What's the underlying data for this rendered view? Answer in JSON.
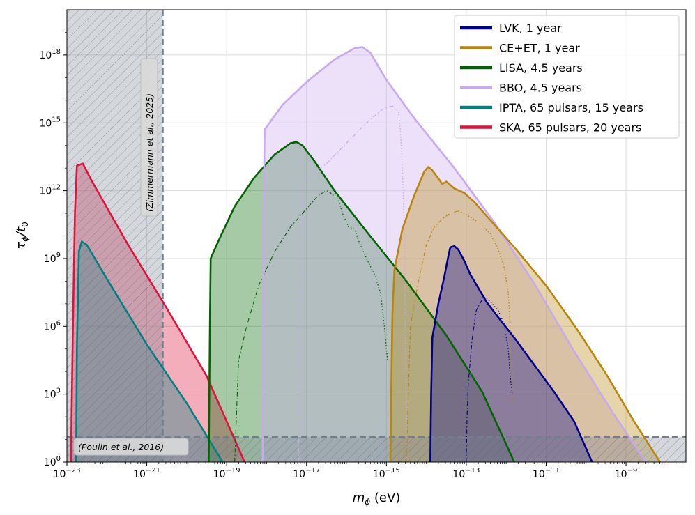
{
  "chart_data": {
    "type": "area",
    "title": "",
    "xlabel": "m",
    "xlabel_sub": "ϕ",
    "xlabel_unit": " (eV)",
    "ylabel": "τ",
    "ylabel_sub": "ϕ",
    "ylabel_tail": "/t",
    "ylabel_sub2": "0",
    "xscale": "log",
    "yscale": "log",
    "xlim_log10": [
      -23,
      -7.5
    ],
    "ylim_log10": [
      0,
      20
    ],
    "grid": true,
    "legend_position": "top-right",
    "x_ticks": [
      {
        "log": -23,
        "base": "10",
        "exp": "−23"
      },
      {
        "log": -21,
        "base": "10",
        "exp": "−21"
      },
      {
        "log": -19,
        "base": "10",
        "exp": "−19"
      },
      {
        "log": -17,
        "base": "10",
        "exp": "−17"
      },
      {
        "log": -15,
        "base": "10",
        "exp": "−15"
      },
      {
        "log": -13,
        "base": "10",
        "exp": "−13"
      },
      {
        "log": -11,
        "base": "10",
        "exp": "−11"
      },
      {
        "log": -9,
        "base": "10",
        "exp": "−9"
      }
    ],
    "y_ticks": [
      {
        "log": 0,
        "base": "10",
        "exp": "0"
      },
      {
        "log": 3,
        "base": "10",
        "exp": "3"
      },
      {
        "log": 6,
        "base": "10",
        "exp": "6"
      },
      {
        "log": 9,
        "base": "10",
        "exp": "9"
      },
      {
        "log": 12,
        "base": "10",
        "exp": "12"
      },
      {
        "log": 15,
        "base": "10",
        "exp": "15"
      },
      {
        "log": 18,
        "base": "10",
        "exp": "18"
      }
    ],
    "excluded_regions": [
      {
        "name": "zimmermann",
        "label": "(Zimmermann et al., 2025)",
        "x_max_log10": -20.6,
        "orientation": "vertical"
      },
      {
        "name": "poulin",
        "label": "(Poulin et al., 2016)",
        "y_max_log10": 1.1,
        "orientation": "horizontal"
      }
    ],
    "series": [
      {
        "id": "ska",
        "name": "SKA, 65 pulsars, 20 years",
        "color": "#dc143c",
        "fill_opacity": 0.35,
        "outline": [
          [
            -22.9,
            0
          ],
          [
            -22.85,
            6
          ],
          [
            -22.8,
            11
          ],
          [
            -22.75,
            13.1
          ],
          [
            -22.6,
            13.2
          ],
          [
            -22.4,
            12.5
          ],
          [
            -21.5,
            9.7
          ],
          [
            -20.5,
            6.8
          ],
          [
            -19.5,
            3.8
          ],
          [
            -18.55,
            0
          ]
        ]
      },
      {
        "id": "ipta",
        "name": "IPTA, 65 pulsars, 15 years",
        "color": "#008080",
        "fill_opacity": 0.35,
        "outline": [
          [
            -22.77,
            0
          ],
          [
            -22.75,
            5
          ],
          [
            -22.7,
            9.3
          ],
          [
            -22.63,
            9.75
          ],
          [
            -22.5,
            9.6
          ],
          [
            -22,
            8.1
          ],
          [
            -21,
            5.2
          ],
          [
            -20,
            2.6
          ],
          [
            -19.1,
            0
          ]
        ]
      },
      {
        "id": "lisa",
        "name": "LISA, 4.5 years",
        "color": "#006400",
        "fill_opacity": 0.35,
        "outline": [
          [
            -19.45,
            0
          ],
          [
            -19.42,
            6
          ],
          [
            -19.4,
            9
          ],
          [
            -19.2,
            9.8
          ],
          [
            -18.8,
            11.3
          ],
          [
            -18.3,
            12.6
          ],
          [
            -17.8,
            13.6
          ],
          [
            -17.4,
            14.1
          ],
          [
            -17.25,
            14.15
          ],
          [
            -17.1,
            14
          ],
          [
            -16.8,
            13.3
          ],
          [
            -16.3,
            12
          ],
          [
            -15.5,
            10.2
          ],
          [
            -14.5,
            8
          ],
          [
            -13.5,
            5.6
          ],
          [
            -12.6,
            3.1
          ],
          [
            -11.8,
            0
          ]
        ],
        "inner_dashdot": [
          [
            -18.8,
            0
          ],
          [
            -18.7,
            4.5
          ],
          [
            -18.5,
            6
          ],
          [
            -18.2,
            7.8
          ],
          [
            -17.8,
            9.3
          ],
          [
            -17.4,
            10.4
          ],
          [
            -17,
            11.2
          ],
          [
            -16.7,
            11.8
          ],
          [
            -16.5,
            12
          ],
          [
            -16.4,
            11.9
          ]
        ],
        "inner_dotted": [
          [
            -16.4,
            11.9
          ],
          [
            -16.2,
            11.6
          ],
          [
            -16.1,
            11
          ],
          [
            -15.95,
            10.4
          ],
          [
            -15.8,
            10.3
          ],
          [
            -15.7,
            9.8
          ],
          [
            -15.5,
            9
          ],
          [
            -15.3,
            8.3
          ],
          [
            -15.15,
            7.5
          ],
          [
            -15.05,
            6
          ],
          [
            -15.0,
            5
          ],
          [
            -14.97,
            4.5
          ]
        ]
      },
      {
        "id": "bbo",
        "name": "BBO, 4.5 years",
        "color": "#c8a8ee",
        "fill_opacity": 0.35,
        "outline": [
          [
            -18.1,
            0
          ],
          [
            -18.08,
            10
          ],
          [
            -18.05,
            14.7
          ],
          [
            -17.6,
            15.8
          ],
          [
            -17,
            16.8
          ],
          [
            -16.3,
            17.8
          ],
          [
            -15.8,
            18.3
          ],
          [
            -15.6,
            18.35
          ],
          [
            -15.4,
            18.1
          ],
          [
            -15,
            16.9
          ],
          [
            -14.3,
            15.2
          ],
          [
            -13.3,
            13
          ],
          [
            -12.3,
            10.6
          ],
          [
            -11.3,
            7.9
          ],
          [
            -10.3,
            4.9
          ],
          [
            -9.3,
            2.1
          ],
          [
            -8.5,
            0
          ]
        ],
        "inner_dashdot": [
          [
            -17.2,
            0
          ],
          [
            -17.15,
            10
          ],
          [
            -17.1,
            12.4
          ],
          [
            -16.5,
            13.2
          ],
          [
            -16,
            14.1
          ],
          [
            -15.5,
            15
          ],
          [
            -15.1,
            15.6
          ],
          [
            -14.85,
            15.75
          ]
        ],
        "inner_dotted": [
          [
            -14.85,
            15.75
          ],
          [
            -14.7,
            15.5
          ],
          [
            -14.65,
            14.7
          ],
          [
            -14.6,
            13
          ],
          [
            -14.55,
            10
          ],
          [
            -14.52,
            5
          ],
          [
            -14.5,
            2
          ],
          [
            -14.5,
            0
          ]
        ]
      },
      {
        "id": "ce_et",
        "name": "CE+ET, 1 year",
        "color": "#b8860b",
        "fill_opacity": 0.35,
        "outline": [
          [
            -14.9,
            0
          ],
          [
            -14.88,
            3
          ],
          [
            -14.85,
            6.5
          ],
          [
            -14.8,
            8.5
          ],
          [
            -14.6,
            10.3
          ],
          [
            -14.3,
            11.8
          ],
          [
            -14.05,
            12.85
          ],
          [
            -13.95,
            13.05
          ],
          [
            -13.85,
            12.9
          ],
          [
            -13.6,
            12.3
          ],
          [
            -13.5,
            12.4
          ],
          [
            -13.3,
            12.1
          ],
          [
            -13.05,
            11.9
          ],
          [
            -12.8,
            11.5
          ],
          [
            -12.4,
            10.7
          ],
          [
            -11.8,
            9.5
          ],
          [
            -11,
            7.8
          ],
          [
            -10.2,
            5.8
          ],
          [
            -9.5,
            3.9
          ],
          [
            -8.8,
            1.8
          ],
          [
            -8.15,
            0
          ]
        ],
        "inner_dashdot": [
          [
            -14.5,
            0
          ],
          [
            -14.45,
            3
          ],
          [
            -14.4,
            6
          ],
          [
            -14.2,
            8
          ],
          [
            -14,
            9.6
          ],
          [
            -13.8,
            10.4
          ],
          [
            -13.6,
            10.75
          ],
          [
            -13.4,
            11
          ],
          [
            -13.2,
            11.1
          ]
        ],
        "inner_dotted": [
          [
            -13.2,
            11.1
          ],
          [
            -13,
            10.95
          ],
          [
            -12.7,
            10.6
          ],
          [
            -12.4,
            10.1
          ],
          [
            -12.2,
            9.4
          ],
          [
            -12.05,
            8.6
          ],
          [
            -11.95,
            7.5
          ],
          [
            -11.9,
            6
          ],
          [
            -11.87,
            4
          ],
          [
            -11.85,
            2.5
          ]
        ]
      },
      {
        "id": "lvk",
        "name": "LVK, 1 year",
        "color": "#00008b",
        "fill_opacity": 0.35,
        "outline": [
          [
            -13.9,
            0
          ],
          [
            -13.88,
            3
          ],
          [
            -13.85,
            5.5
          ],
          [
            -13.7,
            7
          ],
          [
            -13.55,
            8.2
          ],
          [
            -13.45,
            9.1
          ],
          [
            -13.4,
            9.5
          ],
          [
            -13.3,
            9.55
          ],
          [
            -13.2,
            9.4
          ],
          [
            -13.05,
            8.9
          ],
          [
            -12.9,
            8.3
          ],
          [
            -12.7,
            7.7
          ],
          [
            -12.5,
            7.1
          ],
          [
            -12.2,
            6.4
          ],
          [
            -11.8,
            5.5
          ],
          [
            -11.3,
            4.3
          ],
          [
            -10.8,
            3.1
          ],
          [
            -10.3,
            1.8
          ],
          [
            -9.85,
            0
          ]
        ],
        "inner_dashdot": [
          [
            -13.0,
            0
          ],
          [
            -12.98,
            2
          ],
          [
            -12.95,
            3.5
          ],
          [
            -12.85,
            5.5
          ],
          [
            -12.75,
            6.7
          ],
          [
            -12.6,
            7.2
          ],
          [
            -12.55,
            7.3
          ]
        ],
        "inner_dotted": [
          [
            -12.55,
            7.3
          ],
          [
            -12.4,
            7.1
          ],
          [
            -12.2,
            6.7
          ],
          [
            -12.05,
            6.1
          ],
          [
            -11.95,
            5
          ],
          [
            -11.9,
            3.8
          ],
          [
            -11.85,
            3
          ]
        ]
      }
    ],
    "legend": [
      {
        "id": "lvk",
        "label": "LVK, 1 year",
        "color": "#00008b"
      },
      {
        "id": "ce_et",
        "label": "CE+ET, 1 year",
        "color": "#b8860b"
      },
      {
        "id": "lisa",
        "label": "LISA, 4.5 years",
        "color": "#006400"
      },
      {
        "id": "bbo",
        "label": "BBO, 4.5 years",
        "color": "#c8a8ee"
      },
      {
        "id": "ipta",
        "label": "IPTA, 65 pulsars, 15 years",
        "color": "#008080"
      },
      {
        "id": "ska",
        "label": "SKA, 65 pulsars, 20 years",
        "color": "#dc143c"
      }
    ]
  }
}
